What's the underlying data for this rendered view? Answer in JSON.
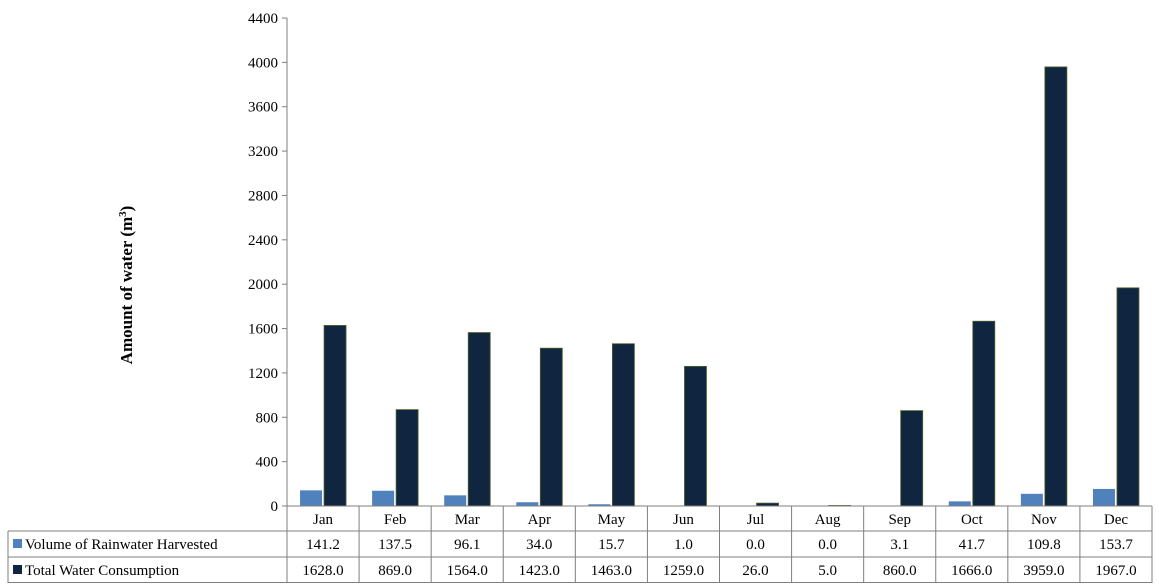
{
  "chart_data": {
    "type": "bar",
    "ylabel": "Amount of water (m",
    "ylabel_superscript": "3",
    "ylabel_suffix": ")",
    "ylim": [
      0,
      4400
    ],
    "yticks": [
      0,
      400,
      800,
      1200,
      1600,
      2000,
      2400,
      2800,
      3200,
      3600,
      4000,
      4400
    ],
    "grid": false,
    "legend": "data-table",
    "categories": [
      "Jan",
      "Feb",
      "Mar",
      "Apr",
      "May",
      "Jun",
      "Jul",
      "Aug",
      "Sep",
      "Oct",
      "Nov",
      "Dec"
    ],
    "series": [
      {
        "name": "Volume of Rainwater Harvested",
        "color": "#4f81bd",
        "values": [
          141.2,
          137.5,
          96.1,
          34.0,
          15.7,
          1.0,
          0.0,
          0.0,
          3.1,
          41.7,
          109.8,
          153.7
        ],
        "labels": [
          "141.2",
          "137.5",
          "96.1",
          "34.0",
          "15.7",
          "1.0",
          "0.0",
          "0.0",
          "3.1",
          "41.7",
          "109.8",
          "153.7"
        ]
      },
      {
        "name": "Total Water Consumption",
        "color": "#10253f",
        "values": [
          1628.0,
          869.0,
          1564.0,
          1423.0,
          1463.0,
          1259.0,
          26.0,
          5.0,
          860.0,
          1666.0,
          3959.0,
          1967.0
        ],
        "labels": [
          "1628.0",
          "869.0",
          "1564.0",
          "1423.0",
          "1463.0",
          "1259.0",
          "26.0",
          "5.0",
          "860.0",
          "1666.0",
          "3959.0",
          "1967.0"
        ]
      }
    ]
  }
}
